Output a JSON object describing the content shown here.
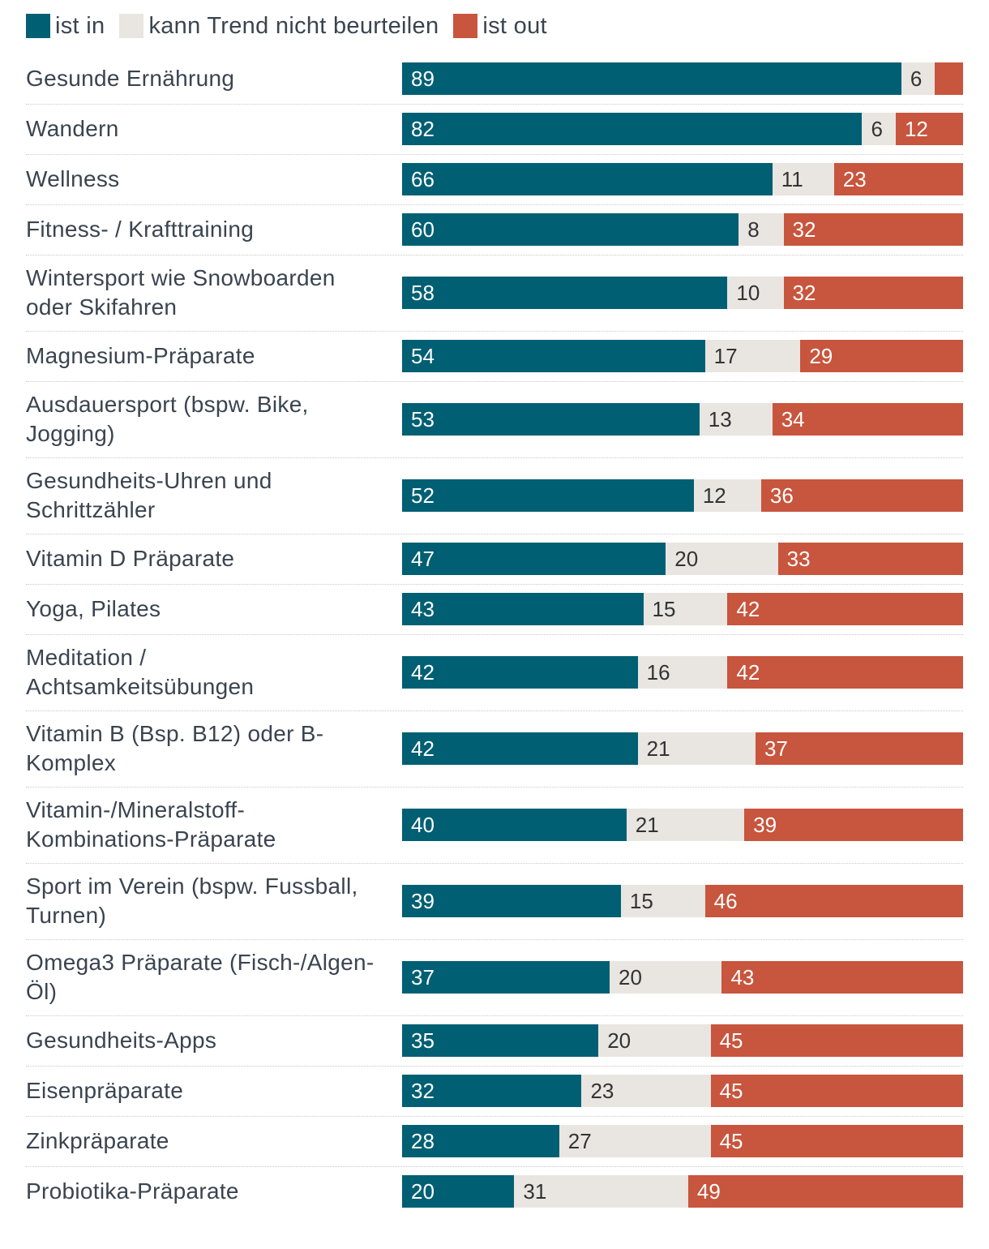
{
  "legend": [
    {
      "label": "ist in",
      "color": "#005f73"
    },
    {
      "label": "kann Trend nicht beurteilen",
      "color": "#e9e5e1"
    },
    {
      "label": "ist out",
      "color": "#c8553d"
    }
  ],
  "chart_data": {
    "type": "bar",
    "orientation": "horizontal",
    "stacked": true,
    "normalized_to": 100,
    "categories": [
      "Gesunde Ernährung",
      "Wandern",
      "Wellness",
      "Fitness- / Krafttraining",
      "Wintersport wie Snowboarden oder Skifahren",
      "Magnesium-Präparate",
      "Ausdauersport (bspw. Bike, Jogging)",
      "Gesundheits-Uhren und Schrittzähler",
      "Vitamin D Präparate",
      "Yoga, Pilates",
      "Meditation / Achtsamkeitsübungen",
      "Vitamin B (Bsp. B12) oder B-Komplex",
      "Vitamin-/Mineralstoff-Kombinations-Präparate",
      "Sport im Verein (bspw. Fussball, Turnen)",
      "Omega3 Präparate (Fisch-/Algen-Öl)",
      "Gesundheits-Apps",
      "Eisenpräparate",
      "Zinkpräparate",
      "Probiotika-Präparate"
    ],
    "label_lines": [
      [
        "Gesunde Ernährung"
      ],
      [
        "Wandern"
      ],
      [
        "Wellness"
      ],
      [
        "Fitness- / Krafttraining"
      ],
      [
        "Wintersport wie Snowboarden",
        "oder Skifahren"
      ],
      [
        "Magnesium-Präparate"
      ],
      [
        "Ausdauersport (bspw. Bike,",
        "Jogging)"
      ],
      [
        "Gesundheits-Uhren und",
        "Schrittzähler"
      ],
      [
        "Vitamin D Präparate"
      ],
      [
        "Yoga, Pilates"
      ],
      [
        "Meditation /",
        "Achtsamkeitsübungen"
      ],
      [
        "Vitamin B (Bsp. B12) oder B-",
        "Komplex"
      ],
      [
        "Vitamin-/Mineralstoff-",
        "Kombinations-Präparate"
      ],
      [
        "Sport im Verein (bspw. Fussball,",
        "Turnen)"
      ],
      [
        "Omega3 Präparate (Fisch-/Algen-",
        "Öl)"
      ],
      [
        "Gesundheits-Apps"
      ],
      [
        "Eisenpräparate"
      ],
      [
        "Zinkpräparate"
      ],
      [
        "Probiotika-Präparate"
      ]
    ],
    "series": [
      {
        "name": "ist in",
        "color": "#005f73",
        "values": [
          89,
          82,
          66,
          60,
          58,
          54,
          53,
          52,
          47,
          43,
          42,
          42,
          40,
          39,
          37,
          35,
          32,
          28,
          20
        ]
      },
      {
        "name": "kann Trend nicht beurteilen",
        "color": "#e9e5e1",
        "values": [
          6,
          6,
          11,
          8,
          10,
          17,
          13,
          12,
          20,
          15,
          16,
          21,
          21,
          15,
          20,
          20,
          23,
          27,
          31
        ]
      },
      {
        "name": "ist out",
        "color": "#c8553d",
        "values": [
          5,
          12,
          23,
          32,
          32,
          29,
          34,
          36,
          33,
          42,
          42,
          37,
          39,
          46,
          43,
          45,
          45,
          45,
          49
        ]
      }
    ],
    "value_labels": [
      [
        "89",
        "6",
        ""
      ],
      [
        "82",
        "6",
        "12"
      ],
      [
        "66",
        "11",
        "23"
      ],
      [
        "60",
        "8",
        "32"
      ],
      [
        "58",
        "10",
        "32"
      ],
      [
        "54",
        "17",
        "29"
      ],
      [
        "53",
        "13",
        "34"
      ],
      [
        "52",
        "12",
        "36"
      ],
      [
        "47",
        "20",
        "33"
      ],
      [
        "43",
        "15",
        "42"
      ],
      [
        "42",
        "16",
        "42"
      ],
      [
        "42",
        "21",
        "37"
      ],
      [
        "40",
        "21",
        "39"
      ],
      [
        "39",
        "15",
        "46"
      ],
      [
        "37",
        "20",
        "43"
      ],
      [
        "35",
        "20",
        "45"
      ],
      [
        "32",
        "23",
        "45"
      ],
      [
        "28",
        "27",
        "45"
      ],
      [
        "20",
        "31",
        "49"
      ]
    ],
    "value_label_colors": [
      "#ffffff",
      "#333333",
      "#ffffff"
    ]
  }
}
